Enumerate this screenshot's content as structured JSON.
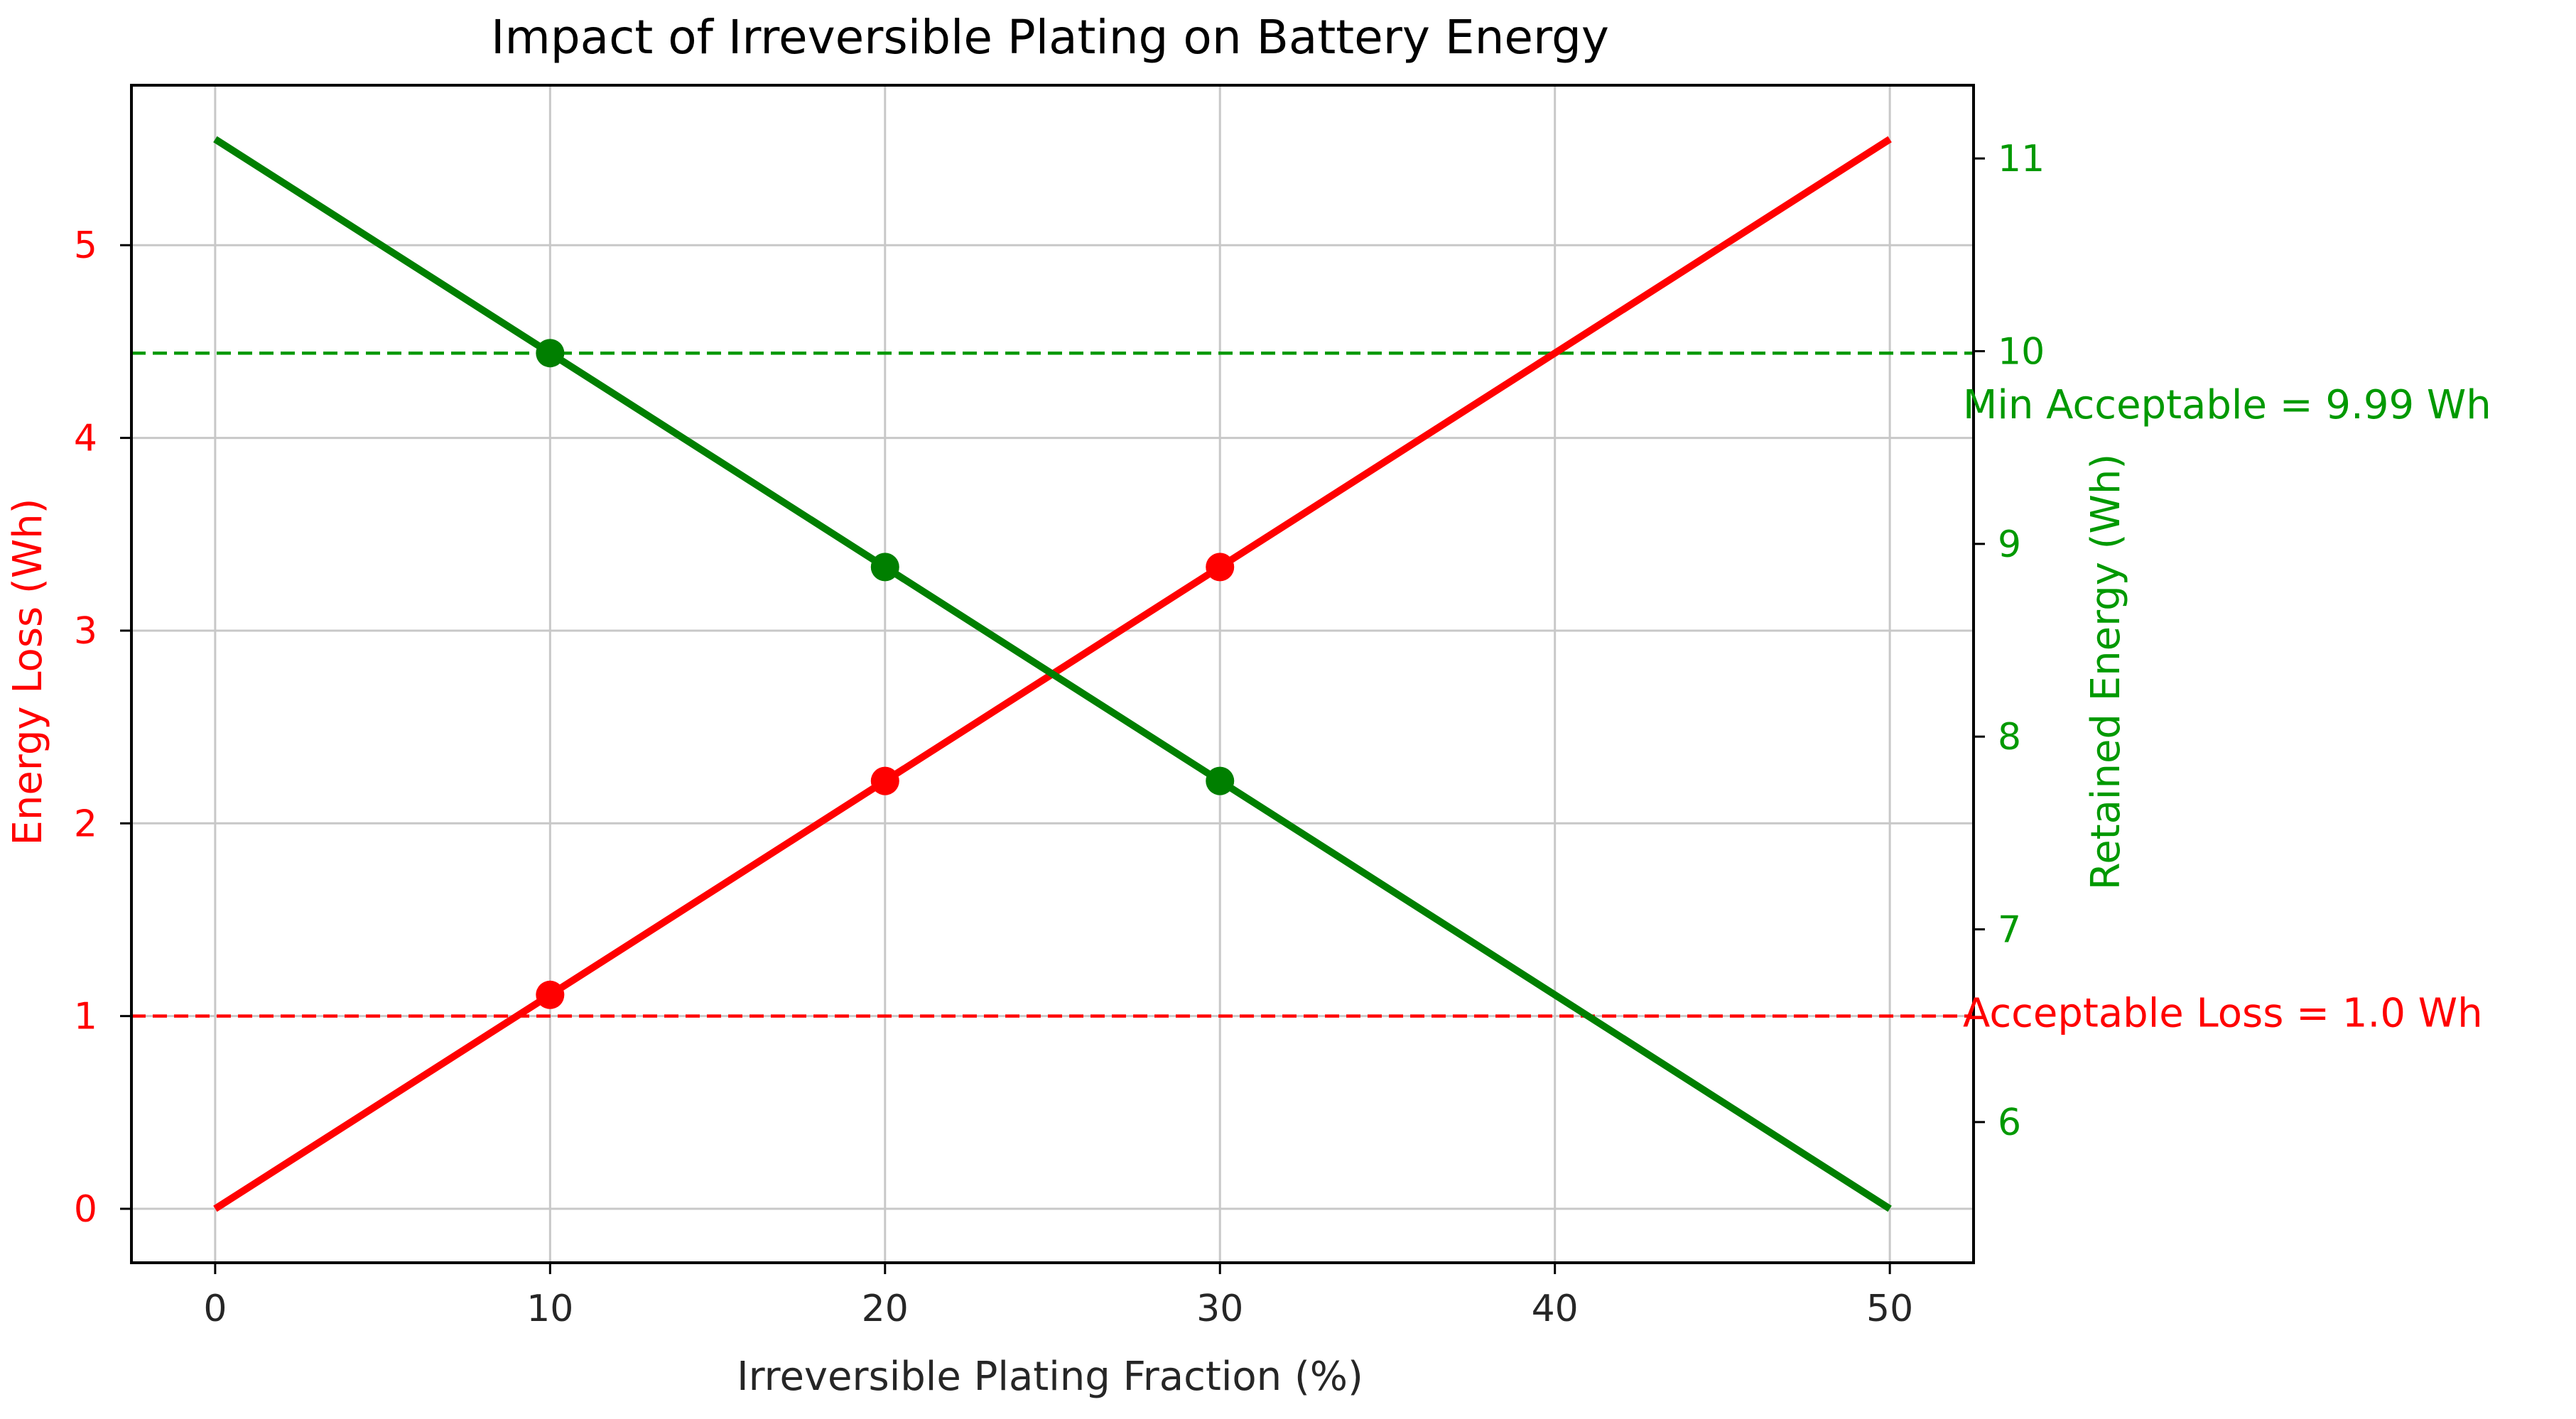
{
  "chart_data": {
    "type": "line",
    "title": "Impact of Irreversible Plating on Battery Energy",
    "xlabel": "Irreversible Plating Fraction (%)",
    "ylabel_left": "Energy Loss (Wh)",
    "ylabel_right": "Retained Energy (Wh)",
    "xlim": [
      -2.5,
      52.5
    ],
    "ylim_left": [
      -0.28,
      5.83
    ],
    "ylim_right": [
      5.27,
      11.38
    ],
    "grid": true,
    "x_ticks": [
      0,
      10,
      20,
      30,
      40,
      50
    ],
    "y_left_ticks": [
      0,
      1,
      2,
      3,
      4,
      5
    ],
    "y_right_ticks": [
      6,
      7,
      8,
      9,
      10,
      11
    ],
    "series": [
      {
        "name": "Energy Loss",
        "axis": "left",
        "color": "#ff0000",
        "x": [
          0,
          50
        ],
        "y": [
          0,
          5.55
        ]
      },
      {
        "name": "Retained Energy",
        "axis": "right",
        "color": "#007f00",
        "x": [
          0,
          50
        ],
        "y": [
          11.1,
          5.55
        ]
      }
    ],
    "markers": [
      {
        "series": "Energy Loss",
        "axis": "left",
        "color": "#ff0000",
        "x": [
          10,
          20,
          30
        ],
        "y": [
          1.11,
          2.22,
          3.33
        ]
      },
      {
        "series": "Retained Energy",
        "axis": "right",
        "color": "#007f00",
        "x": [
          10,
          20,
          30
        ],
        "y": [
          9.99,
          8.88,
          7.77
        ]
      }
    ],
    "thresholds": [
      {
        "axis": "left",
        "value": 1.0,
        "color": "#ff0000",
        "label": "Acceptable Loss = 1.0 Wh"
      },
      {
        "axis": "right",
        "value": 9.99,
        "color": "#009900",
        "label": "Min Acceptable = 9.99 Wh"
      }
    ]
  }
}
